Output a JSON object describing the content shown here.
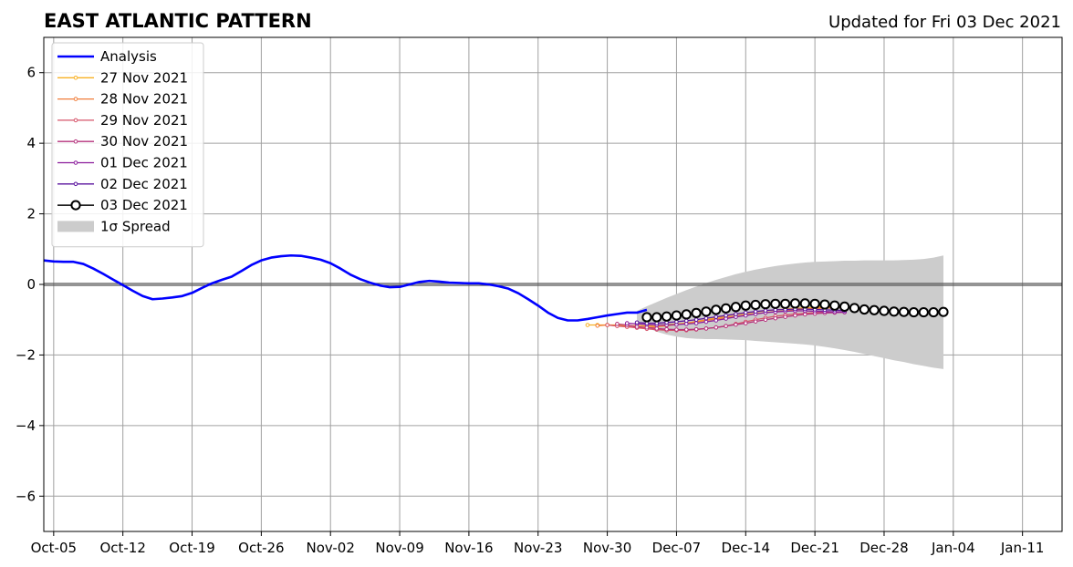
{
  "chart_data": {
    "type": "line",
    "title": "EAST ATLANTIC PATTERN",
    "subtitle": "Updated for Fri 03 Dec 2021",
    "xlabel": "",
    "ylabel": "",
    "ylim": [
      -7,
      7
    ],
    "xlim": [
      "2021-10-04",
      "2022-01-15"
    ],
    "grid": true,
    "legend_position": "top-left",
    "x_ticks": [
      "Oct-05",
      "Oct-12",
      "Oct-19",
      "Oct-26",
      "Nov-02",
      "Nov-09",
      "Nov-16",
      "Nov-23",
      "Nov-30",
      "Dec-07",
      "Dec-14",
      "Dec-21",
      "Dec-28",
      "Jan-04",
      "Jan-11"
    ],
    "x_tick_dates": [
      "2021-10-05",
      "2021-10-12",
      "2021-10-19",
      "2021-10-26",
      "2021-11-02",
      "2021-11-09",
      "2021-11-16",
      "2021-11-23",
      "2021-11-30",
      "2021-12-07",
      "2021-12-14",
      "2021-12-21",
      "2021-12-28",
      "2022-01-04",
      "2022-01-11"
    ],
    "y_ticks": [
      -6,
      -4,
      -2,
      0,
      2,
      4,
      6
    ],
    "y_tick_labels": [
      "−6",
      "−4",
      "−2",
      "0",
      "2",
      "4",
      "6"
    ],
    "series": [
      {
        "name": "Analysis",
        "color": "#0000ff",
        "style": "analysis",
        "start": "2021-10-04",
        "values": [
          0.68,
          0.65,
          0.64,
          0.64,
          0.58,
          0.45,
          0.3,
          0.14,
          -0.02,
          -0.18,
          -0.33,
          -0.42,
          -0.4,
          -0.37,
          -0.33,
          -0.24,
          -0.1,
          0.03,
          0.13,
          0.22,
          0.38,
          0.55,
          0.68,
          0.76,
          0.8,
          0.82,
          0.81,
          0.76,
          0.7,
          0.6,
          0.45,
          0.28,
          0.15,
          0.05,
          -0.03,
          -0.08,
          -0.07,
          0.0,
          0.07,
          0.1,
          0.08,
          0.05,
          0.04,
          0.03,
          0.03,
          0.0,
          -0.05,
          -0.12,
          -0.25,
          -0.42,
          -0.6,
          -0.8,
          -0.95,
          -1.02,
          -1.02,
          -0.98,
          -0.93,
          -0.88,
          -0.84,
          -0.8,
          -0.8,
          -0.72
        ]
      },
      {
        "name": "27 Nov 2021",
        "color": "#f8b023",
        "style": "forecast",
        "start": "2021-11-28",
        "values": [
          -1.15,
          -1.15,
          -1.15,
          -1.15,
          -1.17,
          -1.17,
          -1.18,
          -1.16,
          -1.14,
          -1.12,
          -1.1,
          -1.05,
          -1.0,
          -0.95,
          -0.9,
          -0.85,
          -0.82,
          -0.78,
          -0.75,
          -0.72,
          -0.7,
          -0.68,
          -0.67,
          -0.65,
          -0.63,
          -0.62,
          -0.6
        ]
      },
      {
        "name": "28 Nov 2021",
        "color": "#f07d3a",
        "style": "forecast",
        "start": "2021-11-29",
        "values": [
          -1.17,
          -1.15,
          -1.17,
          -1.2,
          -1.22,
          -1.22,
          -1.2,
          -1.17,
          -1.14,
          -1.1,
          -1.06,
          -1.02,
          -0.98,
          -0.94,
          -0.9,
          -0.86,
          -0.83,
          -0.8,
          -0.77,
          -0.75,
          -0.72,
          -0.7,
          -0.68,
          -0.67,
          -0.66,
          -0.65
        ]
      },
      {
        "name": "29 Nov 2021",
        "color": "#d6546a",
        "style": "forecast",
        "start": "2021-11-30",
        "values": [
          -1.15,
          -1.18,
          -1.2,
          -1.23,
          -1.26,
          -1.28,
          -1.3,
          -1.3,
          -1.3,
          -1.28,
          -1.25,
          -1.22,
          -1.18,
          -1.12,
          -1.06,
          -1.0,
          -0.95,
          -0.9,
          -0.87,
          -0.84,
          -0.82,
          -0.8,
          -0.79,
          -0.78,
          -0.78
        ]
      },
      {
        "name": "30 Nov 2021",
        "color": "#b5327c",
        "style": "forecast",
        "start": "2021-12-01",
        "values": [
          -1.12,
          -1.15,
          -1.2,
          -1.22,
          -1.25,
          -1.27,
          -1.28,
          -1.28,
          -1.27,
          -1.25,
          -1.22,
          -1.18,
          -1.14,
          -1.1,
          -1.05,
          -1.0,
          -0.96,
          -0.92,
          -0.88,
          -0.85,
          -0.83,
          -0.81,
          -0.8,
          -0.79
        ]
      },
      {
        "name": "01 Dec 2021",
        "color": "#8b1c9c",
        "style": "forecast",
        "start": "2021-12-02",
        "values": [
          -1.1,
          -1.12,
          -1.14,
          -1.15,
          -1.15,
          -1.14,
          -1.12,
          -1.1,
          -1.06,
          -1.02,
          -0.97,
          -0.92,
          -0.88,
          -0.84,
          -0.8,
          -0.78,
          -0.76,
          -0.75,
          -0.75,
          -0.76,
          -0.77,
          -0.78,
          -0.78
        ]
      },
      {
        "name": "02 Dec 2021",
        "color": "#5a139e",
        "style": "forecast",
        "start": "2021-12-03",
        "values": [
          -1.08,
          -1.1,
          -1.1,
          -1.08,
          -1.06,
          -1.03,
          -1.0,
          -0.96,
          -0.92,
          -0.88,
          -0.84,
          -0.8,
          -0.77,
          -0.74,
          -0.72,
          -0.71,
          -0.7,
          -0.7,
          -0.71,
          -0.72,
          -0.73,
          -0.74
        ]
      },
      {
        "name": "03 Dec 2021",
        "color": "#000000",
        "style": "current",
        "start": "2021-12-04",
        "values": [
          -0.93,
          -0.93,
          -0.91,
          -0.88,
          -0.85,
          -0.81,
          -0.77,
          -0.72,
          -0.68,
          -0.64,
          -0.6,
          -0.58,
          -0.56,
          -0.55,
          -0.55,
          -0.54,
          -0.54,
          -0.55,
          -0.57,
          -0.6,
          -0.63,
          -0.67,
          -0.71,
          -0.73,
          -0.75,
          -0.77,
          -0.78,
          -0.79,
          -0.79,
          -0.79,
          -0.78
        ]
      }
    ],
    "spread": {
      "name": "1σ Spread",
      "color": "#cccccc",
      "start": "2021-12-03",
      "upper": [
        -0.75,
        -0.62,
        -0.5,
        -0.38,
        -0.27,
        -0.16,
        -0.06,
        0.04,
        0.13,
        0.21,
        0.29,
        0.36,
        0.42,
        0.47,
        0.52,
        0.56,
        0.59,
        0.62,
        0.64,
        0.65,
        0.66,
        0.67,
        0.67,
        0.68,
        0.68,
        0.68,
        0.68,
        0.69,
        0.7,
        0.72,
        0.76,
        0.82
      ],
      "lower": [
        -1.1,
        -1.22,
        -1.34,
        -1.42,
        -1.48,
        -1.52,
        -1.54,
        -1.55,
        -1.55,
        -1.56,
        -1.57,
        -1.58,
        -1.6,
        -1.62,
        -1.64,
        -1.66,
        -1.68,
        -1.7,
        -1.73,
        -1.77,
        -1.81,
        -1.86,
        -1.91,
        -1.97,
        -2.03,
        -2.09,
        -2.15,
        -2.2,
        -2.26,
        -2.31,
        -2.36,
        -2.4
      ]
    }
  }
}
